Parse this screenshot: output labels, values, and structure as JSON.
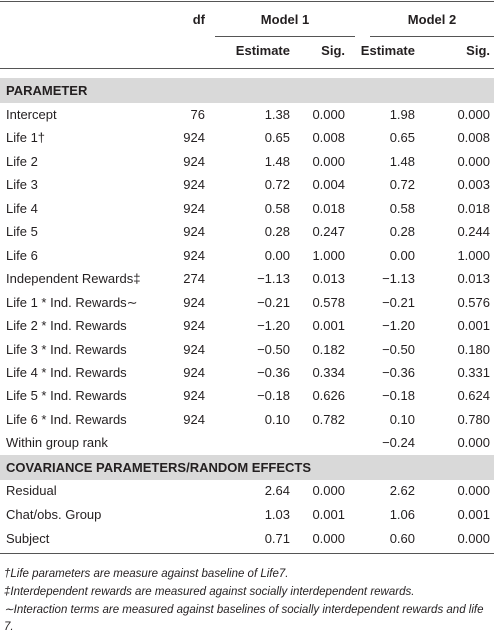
{
  "table": {
    "header": {
      "df": "df",
      "model1": "Model 1",
      "model2": "Model 2",
      "estimate1": "Estimate",
      "sig1": "Sig.",
      "estimate2": "Estimate",
      "sig2": "Sig."
    },
    "section1": "PARAMETER",
    "parameters": [
      [
        "Intercept",
        "76",
        "1.38",
        "0.000",
        "1.98",
        "0.000"
      ],
      [
        "Life 1†",
        "924",
        "0.65",
        "0.008",
        "0.65",
        "0.008"
      ],
      [
        "Life 2",
        "924",
        "1.48",
        "0.000",
        "1.48",
        "0.000"
      ],
      [
        "Life 3",
        "924",
        "0.72",
        "0.004",
        "0.72",
        "0.003"
      ],
      [
        "Life 4",
        "924",
        "0.58",
        "0.018",
        "0.58",
        "0.018"
      ],
      [
        "Life 5",
        "924",
        "0.28",
        "0.247",
        "0.28",
        "0.244"
      ],
      [
        "Life 6",
        "924",
        "0.00",
        "1.000",
        "0.00",
        "1.000"
      ],
      [
        "Independent Rewards‡",
        "274",
        "−1.13",
        "0.013",
        "−1.13",
        "0.013"
      ],
      [
        "Life 1 * Ind. Rewards∼",
        "924",
        "−0.21",
        "0.578",
        "−0.21",
        "0.576"
      ],
      [
        "Life 2 * Ind. Rewards",
        "924",
        "−1.20",
        "0.001",
        "−1.20",
        "0.001"
      ],
      [
        "Life 3 * Ind. Rewards",
        "924",
        "−0.50",
        "0.182",
        "−0.50",
        "0.180"
      ],
      [
        "Life 4 * Ind. Rewards",
        "924",
        "−0.36",
        "0.334",
        "−0.36",
        "0.331"
      ],
      [
        "Life 5 * Ind. Rewards",
        "924",
        "−0.18",
        "0.626",
        "−0.18",
        "0.624"
      ],
      [
        "Life 6 * Ind. Rewards",
        "924",
        "0.10",
        "0.782",
        "0.10",
        "0.780"
      ],
      [
        "Within group rank",
        null,
        null,
        null,
        "−0.24",
        "0.000"
      ]
    ],
    "section2": "COVARIANCE PARAMETERS/RANDOM EFFECTS",
    "covariance": [
      [
        "Residual",
        null,
        "2.64",
        "0.000",
        "2.62",
        "0.000"
      ],
      [
        "Chat/obs. Group",
        null,
        "1.03",
        "0.001",
        "1.06",
        "0.001"
      ],
      [
        "Subject",
        null,
        "0.71",
        "0.000",
        "0.60",
        "0.000"
      ]
    ],
    "footnotes": [
      "†Life parameters are measure against baseline of Life7.",
      "‡Interdependent rewards are measured against socially interdependent rewards.",
      "∼Interaction terms are measured against baselines of socially interdependent rewards and life 7."
    ]
  }
}
